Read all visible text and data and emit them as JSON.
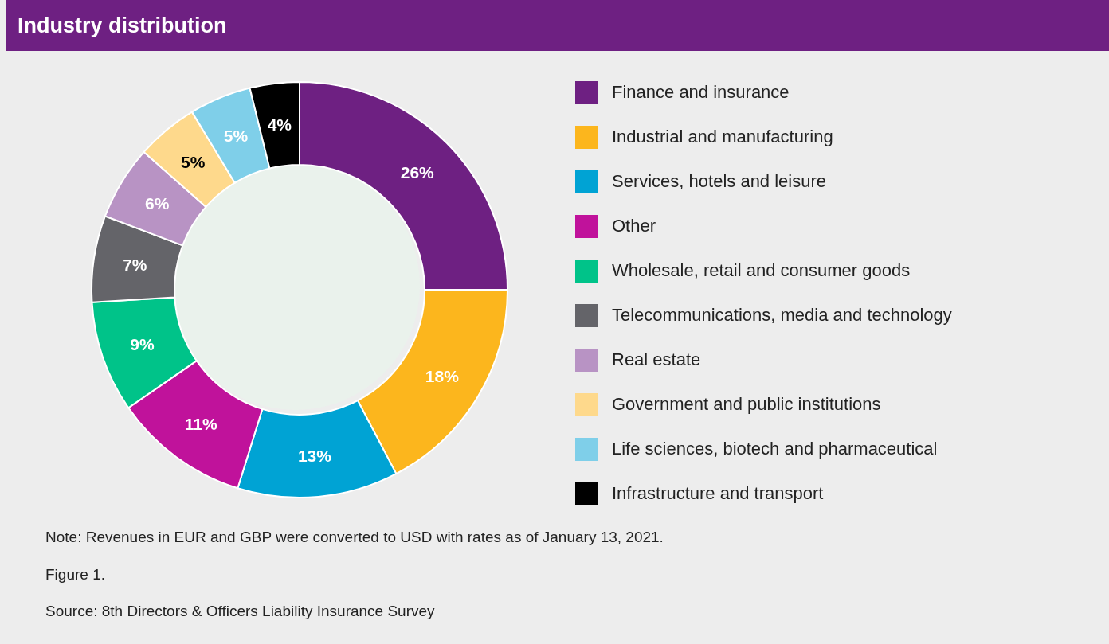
{
  "chart_data": {
    "type": "donut",
    "title": "Industry distribution",
    "categories": [
      "Finance and insurance",
      "Industrial and manufacturing",
      "Services, hotels and leisure",
      "Other",
      "Wholesale, retail and consumer goods",
      "Telecommunications, media and technology",
      "Real estate",
      "Government and public institutions",
      "Life sciences, biotech and pharmaceutical",
      "Infrastructure and transport"
    ],
    "values": [
      26,
      18,
      13,
      11,
      9,
      7,
      6,
      5,
      5,
      4
    ],
    "colors": [
      "#6e2082",
      "#fcb61d",
      "#00a3d4",
      "#c0129b",
      "#00c389",
      "#646469",
      "#b893c4",
      "#fed98c",
      "#7fcfe9",
      "#000000"
    ],
    "value_labels": [
      "26%",
      "18%",
      "13%",
      "11%",
      "9%",
      "7%",
      "6%",
      "5%",
      "5%",
      "4%"
    ],
    "legend": "right",
    "annotations": [
      "Note: Revenues in EUR and GBP were converted to USD with rates as of January 13, 2021.",
      "Figure 1.",
      "Source: 8th Directors & Officers Liability Insurance Survey"
    ]
  }
}
